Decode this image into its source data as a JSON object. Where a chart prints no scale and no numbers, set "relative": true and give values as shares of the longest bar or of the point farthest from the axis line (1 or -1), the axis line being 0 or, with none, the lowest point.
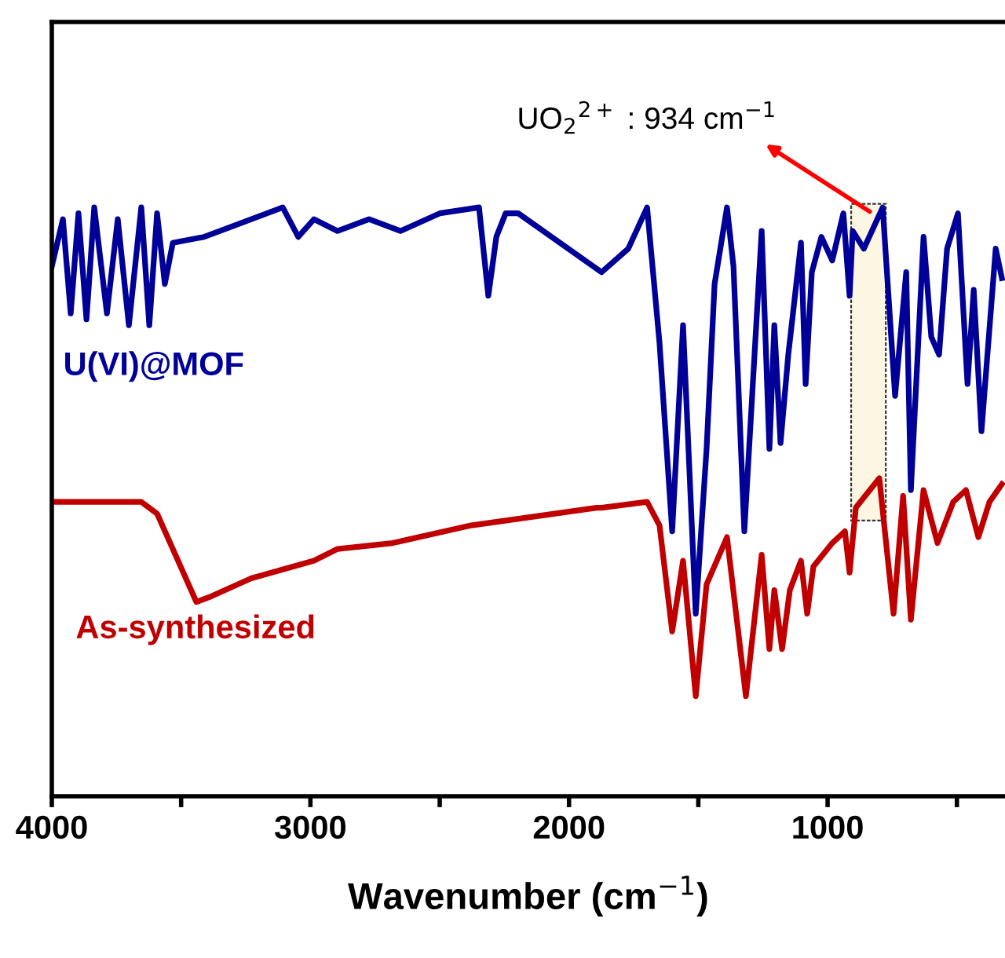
{
  "chart_data": {
    "type": "line",
    "relative": true,
    "xlabel": "Wavenumber (cm$^{−1}$)",
    "xlim": [
      4000,
      314
    ],
    "xticks": [
      4000,
      {
        "value": 3500,
        "label": null
      },
      3000,
      {
        "value": 2500,
        "label": null
      },
      2000,
      {
        "value": 1500,
        "label": null
      },
      1000,
      {
        "value": 500,
        "label": null
      }
    ],
    "grid": false,
    "legend": false,
    "marker": "none",
    "line_style": "solid",
    "annotations": [
      "UO$_{2}$$^{2+}$ : 934 cm$^{−1}$"
    ],
    "bands": [
      {
        "axis": "x",
        "from": 909,
        "to": 775,
        "color": "#fdf6e3"
      }
    ],
    "series": [
      {
        "name": "U(VI)@MOF",
        "color": "#000099",
        "x": [
          4000,
          3957,
          3927,
          3897,
          3866,
          3836,
          3787,
          3745,
          3702,
          3654,
          3623,
          3593,
          3563,
          3532,
          3411,
          3289,
          3107,
          3047,
          2986,
          2895,
          2773,
          2652,
          2500,
          2348,
          2312,
          2281,
          2245,
          2196,
          1874,
          1771,
          1698,
          1650,
          1601,
          1559,
          1510,
          1468,
          1437,
          1389,
          1364,
          1322,
          1255,
          1225,
          1206,
          1182,
          1152,
          1103,
          1085,
          1061,
          1024,
          982,
          939,
          915,
          903,
          860,
          787,
          739,
          696,
          678,
          629,
          599,
          569,
          538,
          496,
          459,
          435,
          405,
          350,
          326
        ],
        "values": [
          0.9,
          0.98,
          0.82,
          0.99,
          0.81,
          1.0,
          0.82,
          0.98,
          0.8,
          1.0,
          0.8,
          0.99,
          0.87,
          0.94,
          0.95,
          0.97,
          1.0,
          0.95,
          0.98,
          0.96,
          0.98,
          0.96,
          0.99,
          1.0,
          0.85,
          0.95,
          0.99,
          0.99,
          0.89,
          0.93,
          1.0,
          0.77,
          0.45,
          0.8,
          0.31,
          0.59,
          0.87,
          1.0,
          0.9,
          0.45,
          0.96,
          0.59,
          0.8,
          0.6,
          0.75,
          0.94,
          0.7,
          0.89,
          0.95,
          0.91,
          0.99,
          0.85,
          0.96,
          0.93,
          1.0,
          0.68,
          0.89,
          0.52,
          0.95,
          0.78,
          0.75,
          0.93,
          0.99,
          0.7,
          0.86,
          0.62,
          0.93,
          0.88
        ]
      },
      {
        "name": "As-synthesized",
        "color": "#c00000",
        "x": [
          4000,
          3654,
          3593,
          3441,
          3381,
          3229,
          2986,
          2895,
          2682,
          2378,
          1893,
          1874,
          1698,
          1650,
          1601,
          1559,
          1510,
          1468,
          1389,
          1316,
          1255,
          1225,
          1206,
          1176,
          1146,
          1103,
          1079,
          1055,
          982,
          933,
          915,
          891,
          800,
          745,
          708,
          678,
          629,
          575,
          514,
          465,
          417,
          374,
          326
        ],
        "values": [
          0.5,
          0.5,
          0.48,
          0.33,
          0.34,
          0.37,
          0.4,
          0.42,
          0.43,
          0.46,
          0.49,
          0.49,
          0.5,
          0.46,
          0.28,
          0.4,
          0.17,
          0.36,
          0.44,
          0.17,
          0.41,
          0.25,
          0.35,
          0.25,
          0.35,
          0.4,
          0.31,
          0.39,
          0.43,
          0.45,
          0.38,
          0.49,
          0.54,
          0.31,
          0.51,
          0.3,
          0.52,
          0.43,
          0.5,
          0.52,
          0.44,
          0.5,
          0.53
        ]
      }
    ]
  }
}
